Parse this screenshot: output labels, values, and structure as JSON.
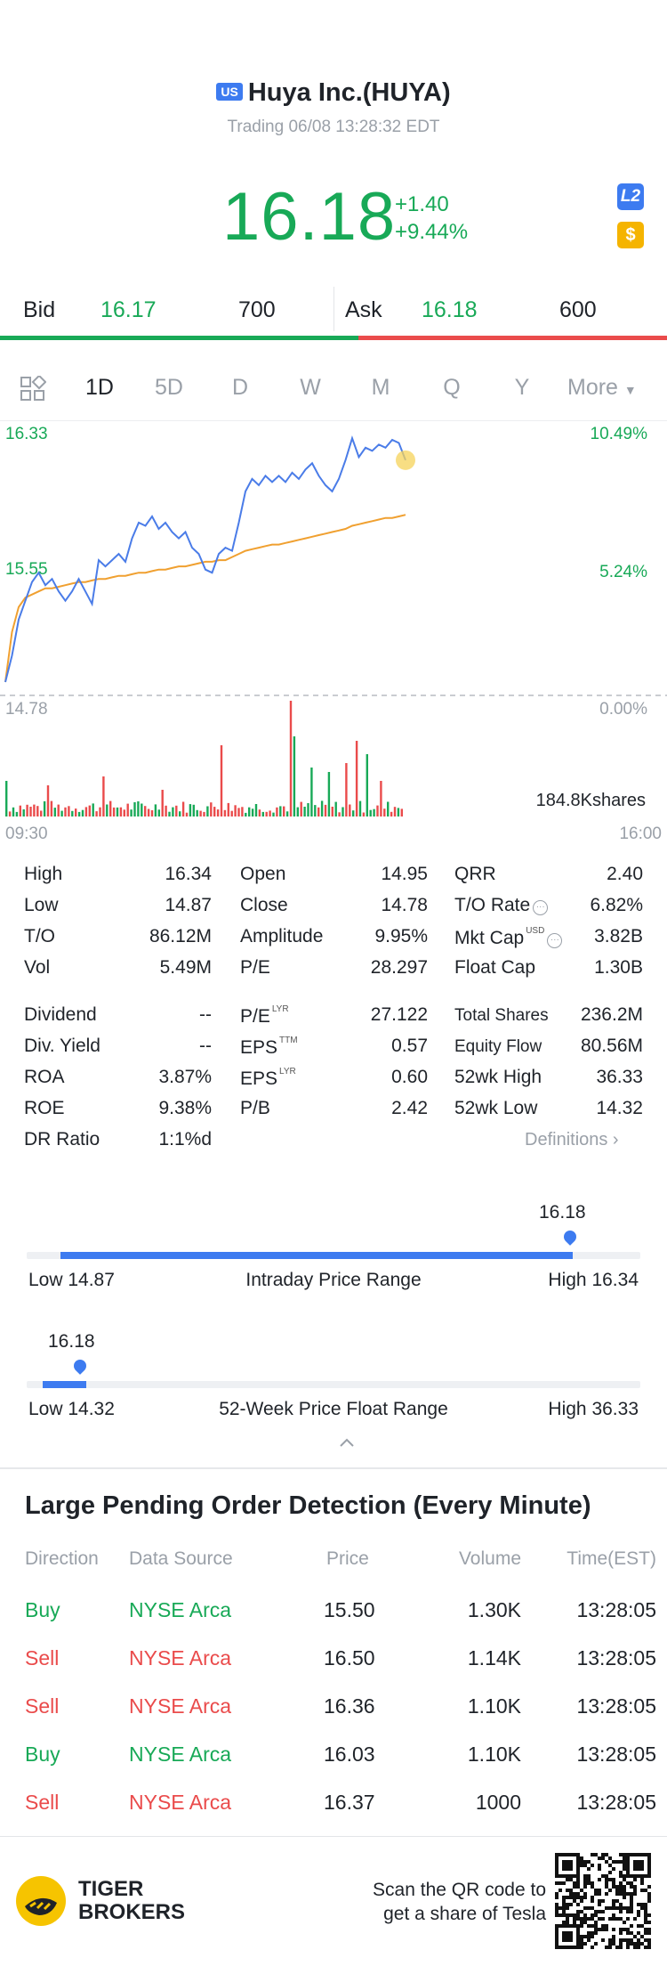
{
  "header": {
    "market_badge": "US",
    "title": "Huya Inc.(HUYA)",
    "status": "Trading 06/08 13:28:32 EDT",
    "price": "16.18",
    "change": "+1.40",
    "change_pct": "+9.44%",
    "l2_badge": "L2",
    "dollar_badge": "$"
  },
  "bidask": {
    "bid_label": "Bid",
    "bid_price": "16.17",
    "bid_size": "700",
    "ask_label": "Ask",
    "ask_price": "16.18",
    "ask_size": "600"
  },
  "periods": {
    "items": [
      "1D",
      "5D",
      "D",
      "W",
      "M",
      "Q",
      "Y"
    ],
    "active": "1D",
    "more": "More"
  },
  "chart_data": {
    "type": "line",
    "y_left_ticks": [
      "16.33",
      "15.55",
      "14.78"
    ],
    "y_right_ticks": [
      "10.49%",
      "5.24%",
      "0.00%"
    ],
    "ylim": [
      14.78,
      16.33
    ],
    "x_start": "09:30",
    "x_end": "16:00",
    "volume_label": "184.8Kshares",
    "series": [
      {
        "values": [
          14.78,
          14.95,
          15.18,
          15.3,
          15.42,
          15.48,
          15.4,
          15.44,
          15.36,
          15.3,
          15.36,
          15.44,
          15.36,
          15.28,
          15.56,
          15.52,
          15.56,
          15.6,
          15.55,
          15.7,
          15.8,
          15.78,
          15.84,
          15.76,
          15.8,
          15.74,
          15.7,
          15.74,
          15.64,
          15.6,
          15.5,
          15.48,
          15.6,
          15.64,
          15.62,
          15.8,
          16.0,
          16.08,
          16.04,
          16.1,
          16.06,
          16.1,
          16.06,
          16.12,
          16.08,
          16.14,
          16.18,
          16.1,
          16.04,
          16.0,
          16.08,
          16.2,
          16.34,
          16.22,
          16.28,
          16.26,
          16.3,
          16.28,
          16.33,
          16.31,
          16.2
        ]
      },
      {
        "values": [
          14.78,
          15.1,
          15.26,
          15.32,
          15.34,
          15.36,
          15.38,
          15.38,
          15.39,
          15.4,
          15.41,
          15.42,
          15.42,
          15.43,
          15.44,
          15.44,
          15.45,
          15.46,
          15.46,
          15.47,
          15.48,
          15.48,
          15.49,
          15.5,
          15.5,
          15.51,
          15.52,
          15.52,
          15.53,
          15.54,
          15.55,
          15.55,
          15.56,
          15.56,
          15.58,
          15.6,
          15.62,
          15.63,
          15.64,
          15.65,
          15.66,
          15.66,
          15.67,
          15.68,
          15.69,
          15.7,
          15.71,
          15.72,
          15.73,
          15.74,
          15.75,
          15.76,
          15.78,
          15.79,
          15.8,
          15.81,
          15.82,
          15.83,
          15.83,
          15.84,
          15.85
        ]
      }
    ]
  },
  "stats": {
    "col1": [
      {
        "label": "High",
        "value": "16.34"
      },
      {
        "label": "Low",
        "value": "14.87"
      },
      {
        "label": "T/O",
        "value": "86.12M"
      },
      {
        "label": "Vol",
        "value": "5.49M"
      },
      {
        "label": "Dividend",
        "value": "--"
      },
      {
        "label": "Div. Yield",
        "value": "--"
      },
      {
        "label": "ROA",
        "value": "3.87%"
      },
      {
        "label": "ROE",
        "value": "9.38%"
      },
      {
        "label": "DR Ratio",
        "value": "1:1%d"
      }
    ],
    "col2": [
      {
        "label": "Open",
        "sup": "",
        "value": "14.95"
      },
      {
        "label": "Close",
        "sup": "",
        "value": "14.78"
      },
      {
        "label": "Amplitude",
        "sup": "",
        "value": "9.95%"
      },
      {
        "label": "P/E",
        "sup": "",
        "value": "28.297"
      },
      {
        "label": "P/E",
        "sup": "LYR",
        "value": "27.122"
      },
      {
        "label": "EPS",
        "sup": "TTM",
        "value": "0.57"
      },
      {
        "label": "EPS",
        "sup": "LYR",
        "value": "0.60"
      },
      {
        "label": "P/B",
        "sup": "",
        "value": "2.42"
      }
    ],
    "col3": [
      {
        "label": "QRR",
        "sup": "",
        "value": "2.40"
      },
      {
        "label": "T/O Rate",
        "sup": "",
        "value": "6.82%"
      },
      {
        "label": "Mkt Cap",
        "sup": "USD",
        "value": "3.82B"
      },
      {
        "label": "Float Cap",
        "sup": "",
        "value": "1.30B"
      },
      {
        "label": "Total Shares",
        "sup": "",
        "value": "236.2M"
      },
      {
        "label": "Equity Flow",
        "sup": "",
        "value": "80.56M"
      },
      {
        "label": "52wk High",
        "sup": "",
        "value": "36.33"
      },
      {
        "label": "52wk Low",
        "sup": "",
        "value": "14.32"
      }
    ],
    "definitions": "Definitions"
  },
  "intraday_range": {
    "current": "16.18",
    "low_label": "Low 14.87",
    "title": "Intraday Price Range",
    "high_label": "High 16.34",
    "fill_fraction": 0.89
  },
  "week52_range": {
    "current": "16.18",
    "low_label": "Low 14.32",
    "title": "52-Week Price Float Range",
    "high_label": "High 36.33",
    "fill_fraction": 0.085
  },
  "orders": {
    "title": "Large Pending Order Detection (Every Minute)",
    "headers": [
      "Direction",
      "Data Source",
      "Price",
      "Volume",
      "Time(EST)"
    ],
    "rows": [
      {
        "dir": "Buy",
        "source": "NYSE Arca",
        "price": "15.50",
        "volume": "1.30K",
        "time": "13:28:05"
      },
      {
        "dir": "Sell",
        "source": "NYSE Arca",
        "price": "16.50",
        "volume": "1.14K",
        "time": "13:28:05"
      },
      {
        "dir": "Sell",
        "source": "NYSE Arca",
        "price": "16.36",
        "volume": "1.10K",
        "time": "13:28:05"
      },
      {
        "dir": "Buy",
        "source": "NYSE Arca",
        "price": "16.03",
        "volume": "1.10K",
        "time": "13:28:05"
      },
      {
        "dir": "Sell",
        "source": "NYSE Arca",
        "price": "16.37",
        "volume": "1000",
        "time": "13:28:05"
      }
    ]
  },
  "footer": {
    "brand_line1": "TIGER",
    "brand_line2": "BROKERS",
    "scan_line1": "Scan the QR code to",
    "scan_line2": "get a share of Tesla"
  },
  "colors": {
    "up": "#18a957",
    "down": "#ea4b4b",
    "accent": "#3d7bf0",
    "avg_line": "#f0a030"
  }
}
